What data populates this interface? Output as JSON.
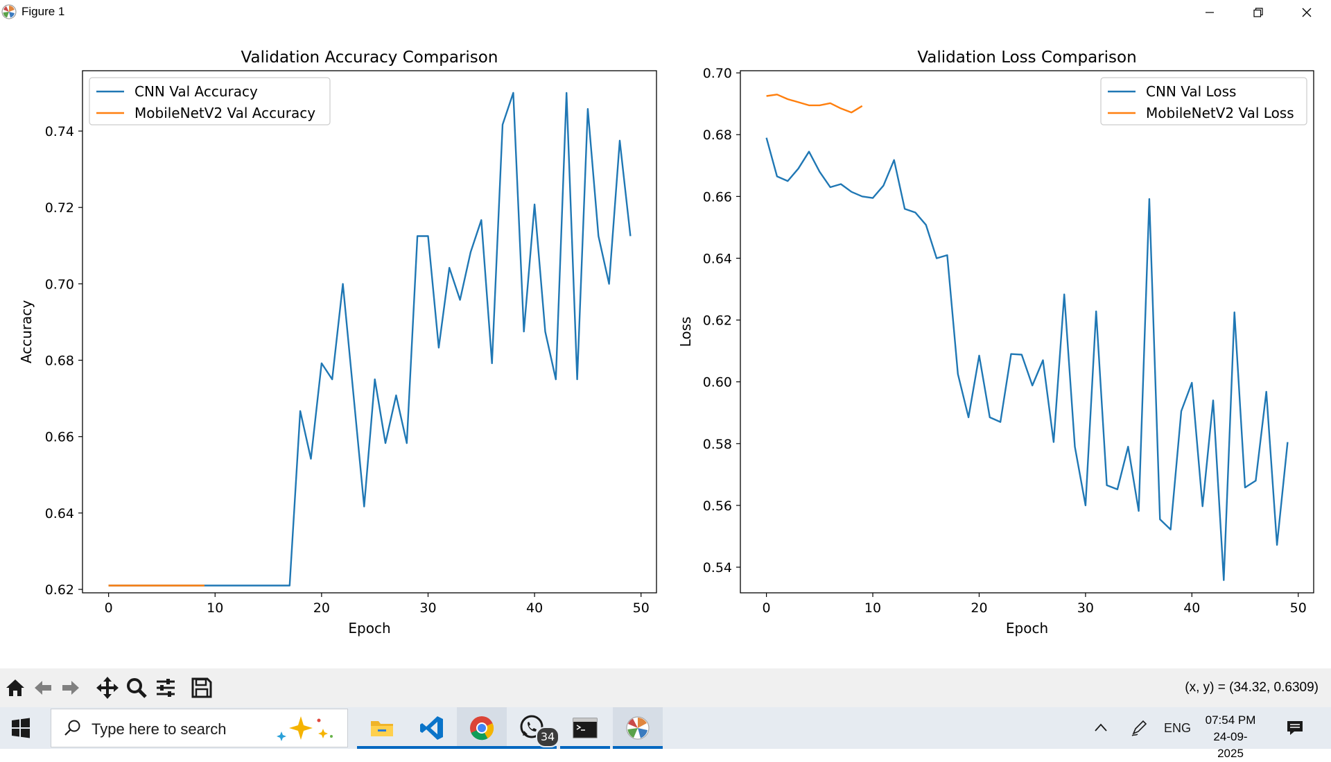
{
  "window": {
    "title": "Figure 1"
  },
  "toolbar": {
    "icons": [
      "home-icon",
      "back-icon",
      "forward-icon",
      "pan-icon",
      "zoom-icon",
      "configure-icon",
      "save-icon"
    ],
    "coord_readout": "(x, y) = (34.32, 0.6309)"
  },
  "chart_data": [
    {
      "type": "line",
      "title": "Validation Accuracy Comparison",
      "xlabel": "Epoch",
      "ylabel": "Accuracy",
      "xlim": [
        -2.45,
        51.45
      ],
      "ylim": [
        0.6191,
        0.7558
      ],
      "xticks": [
        0,
        10,
        20,
        30,
        40,
        50
      ],
      "xtick_labels": [
        "0",
        "10",
        "20",
        "30",
        "40",
        "50"
      ],
      "yticks": [
        0.62,
        0.64,
        0.66,
        0.68,
        0.7,
        0.72,
        0.74
      ],
      "ytick_labels": [
        "0.62",
        "0.64",
        "0.66",
        "0.68",
        "0.70",
        "0.72",
        "0.74"
      ],
      "legend_position": "upper-left",
      "series": [
        {
          "name": "CNN Val Accuracy",
          "color": "#1f77b4",
          "x": [
            0,
            1,
            2,
            3,
            4,
            5,
            6,
            7,
            8,
            9,
            10,
            11,
            12,
            13,
            14,
            15,
            16,
            17,
            18,
            19,
            20,
            21,
            22,
            23,
            24,
            25,
            26,
            27,
            28,
            29,
            30,
            31,
            32,
            33,
            34,
            35,
            36,
            37,
            38,
            39,
            40,
            41,
            42,
            43,
            44,
            45,
            46,
            47,
            48,
            49
          ],
          "y": [
            0.621,
            0.621,
            0.621,
            0.621,
            0.621,
            0.621,
            0.621,
            0.621,
            0.621,
            0.621,
            0.621,
            0.621,
            0.621,
            0.621,
            0.621,
            0.621,
            0.621,
            0.621,
            0.6667,
            0.6542,
            0.6792,
            0.675,
            0.7,
            0.6708,
            0.6417,
            0.675,
            0.6583,
            0.6708,
            0.6583,
            0.7125,
            0.7125,
            0.6833,
            0.7042,
            0.6958,
            0.7083,
            0.7167,
            0.6792,
            0.7417,
            0.75,
            0.6875,
            0.7208,
            0.6875,
            0.675,
            0.75,
            0.675,
            0.7458,
            0.7125,
            0.7,
            0.7375,
            0.7125
          ]
        },
        {
          "name": "MobileNetV2 Val Accuracy",
          "color": "#ff7f0e",
          "x": [
            0,
            1,
            2,
            3,
            4,
            5,
            6,
            7,
            8,
            9
          ],
          "y": [
            0.621,
            0.621,
            0.621,
            0.621,
            0.621,
            0.621,
            0.621,
            0.621,
            0.621,
            0.621
          ]
        }
      ]
    },
    {
      "type": "line",
      "title": "Validation Loss Comparison",
      "xlabel": "Epoch",
      "ylabel": "Loss",
      "xlim": [
        -2.45,
        51.45
      ],
      "ylim": [
        0.5317,
        0.7007
      ],
      "xticks": [
        0,
        10,
        20,
        30,
        40,
        50
      ],
      "xtick_labels": [
        "0",
        "10",
        "20",
        "30",
        "40",
        "50"
      ],
      "yticks": [
        0.54,
        0.56,
        0.58,
        0.6,
        0.62,
        0.64,
        0.66,
        0.68,
        0.7
      ],
      "ytick_labels": [
        "0.54",
        "0.56",
        "0.58",
        "0.60",
        "0.62",
        "0.64",
        "0.66",
        "0.68",
        "0.70"
      ],
      "legend_position": "upper-right",
      "series": [
        {
          "name": "CNN Val Loss",
          "color": "#1f77b4",
          "x": [
            0,
            1,
            2,
            3,
            4,
            5,
            6,
            7,
            8,
            9,
            10,
            11,
            12,
            13,
            14,
            15,
            16,
            17,
            18,
            19,
            20,
            21,
            22,
            23,
            24,
            25,
            26,
            27,
            28,
            29,
            30,
            31,
            32,
            33,
            34,
            35,
            36,
            37,
            38,
            39,
            40,
            41,
            42,
            43,
            44,
            45,
            46,
            47,
            48,
            49
          ],
          "y": [
            0.679,
            0.6665,
            0.665,
            0.669,
            0.6745,
            0.668,
            0.663,
            0.664,
            0.6615,
            0.66,
            0.6595,
            0.6635,
            0.6718,
            0.656,
            0.6548,
            0.6508,
            0.64,
            0.641,
            0.6025,
            0.5885,
            0.6085,
            0.5885,
            0.587,
            0.609,
            0.6088,
            0.5988,
            0.607,
            0.5805,
            0.6283,
            0.579,
            0.56,
            0.6228,
            0.5665,
            0.5652,
            0.579,
            0.5582,
            0.6592,
            0.5555,
            0.5522,
            0.5905,
            0.5997,
            0.5597,
            0.594,
            0.5358,
            0.6225,
            0.5658,
            0.568,
            0.5968,
            0.5472,
            0.5805
          ]
        },
        {
          "name": "MobileNetV2 Val Loss",
          "color": "#ff7f0e",
          "x": [
            0,
            1,
            2,
            3,
            4,
            5,
            6,
            7,
            8,
            9
          ],
          "y": [
            0.6925,
            0.693,
            0.6915,
            0.6905,
            0.6895,
            0.6895,
            0.6902,
            0.6885,
            0.6872,
            0.6893
          ]
        }
      ]
    }
  ],
  "taskbar": {
    "search_placeholder": "Type here to search",
    "apps": [
      "file-explorer",
      "vscode",
      "chrome",
      "whatsapp",
      "terminal",
      "matplotlib-figure"
    ],
    "whatsapp_badge": "34",
    "language": "ENG",
    "time": "07:54 PM",
    "date": "24-09-2025"
  }
}
